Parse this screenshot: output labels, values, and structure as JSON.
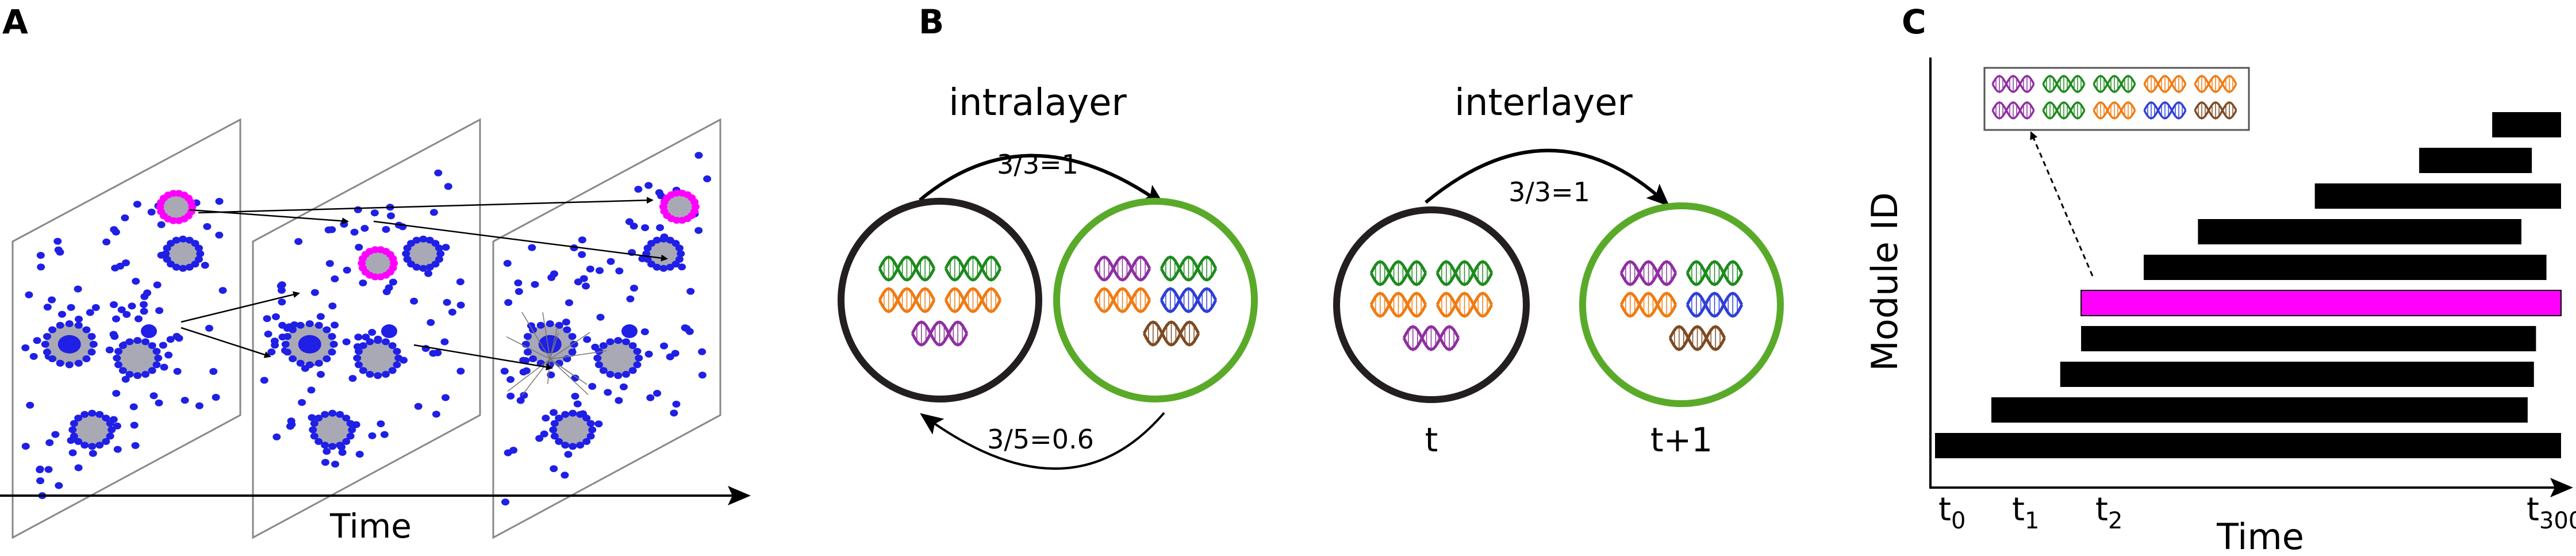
{
  "panels": {
    "a": {
      "label": "A",
      "time_label": "Time",
      "layer_count": 3,
      "colors": {
        "node": "#1f1fe6",
        "node_gray": "#a9a9b6",
        "highlight": "#ff00ff",
        "edge": "#777777"
      }
    },
    "b": {
      "label": "B",
      "intralayer": {
        "title": "intralayer",
        "top_ratio": "3/3=1",
        "bottom_ratio": "3/5=0.6"
      },
      "interlayer": {
        "title": "interlayer",
        "ratio": "3/3=1",
        "left_time": "t",
        "right_time": "t+1"
      },
      "colors": {
        "circle_left": "#231f20",
        "circle_right": "#5aaa2a",
        "dna": [
          "#1d8a1d",
          "#f07b12",
          "#8e2fa0",
          "#2f3fd6",
          "#7d4a22"
        ]
      }
    },
    "c": {
      "label": "C",
      "ylabel": "Module ID",
      "xlabel": "Time",
      "ticks": [
        {
          "base": "t",
          "sub": "0"
        },
        {
          "base": "t",
          "sub": "1"
        },
        {
          "base": "t",
          "sub": "2"
        },
        {
          "base": "t",
          "sub": "300"
        }
      ],
      "colors": {
        "bar": "#000000",
        "highlight": "#ff00ff"
      },
      "chart_data": {
        "type": "bar",
        "orientation": "horizontal-gantt",
        "title": "",
        "xlabel": "Time",
        "ylabel": "Module ID",
        "xlim": [
          0,
          300
        ],
        "bars": [
          {
            "module": 1,
            "start": 0,
            "end": 300,
            "highlight": false
          },
          {
            "module": 2,
            "start": 27,
            "end": 284,
            "highlight": false
          },
          {
            "module": 3,
            "start": 60,
            "end": 287,
            "highlight": false
          },
          {
            "module": 4,
            "start": 70,
            "end": 288,
            "highlight": false
          },
          {
            "module": 5,
            "start": 70,
            "end": 300,
            "highlight": true
          },
          {
            "module": 6,
            "start": 100,
            "end": 293,
            "highlight": false
          },
          {
            "module": 7,
            "start": 126,
            "end": 281,
            "highlight": false
          },
          {
            "module": 8,
            "start": 182,
            "end": 300,
            "highlight": false
          },
          {
            "module": 9,
            "start": 232,
            "end": 286,
            "highlight": false
          },
          {
            "module": 10,
            "start": 267,
            "end": 300,
            "highlight": false
          }
        ]
      }
    }
  }
}
